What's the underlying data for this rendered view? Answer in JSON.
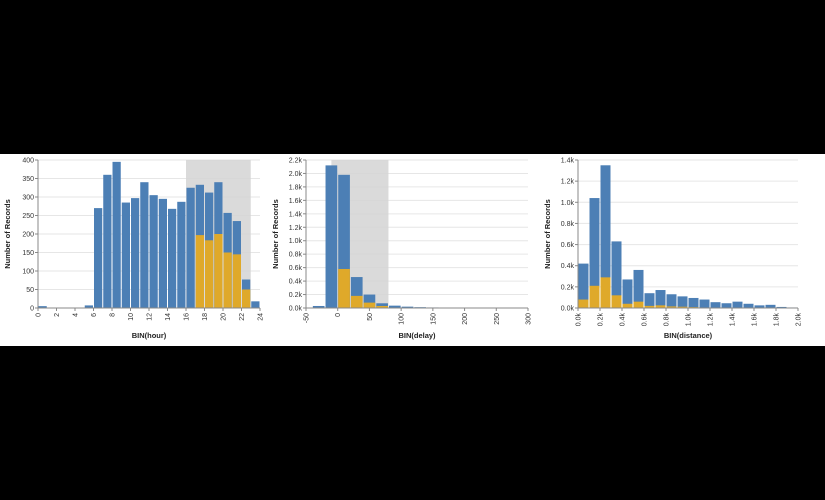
{
  "colors": {
    "background": "#000000",
    "panel": "#ffffff",
    "all_records": "#4c7fb5",
    "selected_records": "#dfa92a",
    "brush": "#d3d3d3",
    "grid": "#e6e6e6"
  },
  "chart_data": [
    {
      "type": "bar",
      "xlabel": "BIN(hour)",
      "ylabel": "Number of Records",
      "xlim": [
        0,
        24
      ],
      "ylim": [
        0,
        400
      ],
      "xticks": [
        0,
        2,
        4,
        6,
        8,
        10,
        12,
        14,
        16,
        18,
        20,
        22,
        24
      ],
      "xtick_labels": [
        "0",
        "2",
        "4",
        "6",
        "8",
        "10",
        "12",
        "14",
        "16",
        "18",
        "20",
        "22",
        "24"
      ],
      "yticks": [
        0,
        50,
        100,
        150,
        200,
        250,
        300,
        350,
        400
      ],
      "ytick_labels": [
        "0",
        "50",
        "100",
        "150",
        "200",
        "250",
        "300",
        "350",
        "400"
      ],
      "bin_width": 1,
      "bins_start": [
        0,
        1,
        2,
        3,
        4,
        5,
        6,
        7,
        8,
        9,
        10,
        11,
        12,
        13,
        14,
        15,
        16,
        17,
        18,
        19,
        20,
        21,
        22,
        23
      ],
      "brush": [
        16,
        23
      ],
      "series": [
        {
          "values": [
            5,
            0,
            0,
            0,
            0,
            7,
            270,
            360,
            395,
            285,
            297,
            340,
            305,
            295,
            268,
            287,
            325,
            333,
            312,
            340,
            257,
            235,
            77,
            18
          ]
        },
        {
          "values": [
            0,
            0,
            0,
            0,
            0,
            0,
            0,
            0,
            0,
            0,
            0,
            0,
            0,
            0,
            0,
            0,
            0,
            197,
            183,
            200,
            150,
            145,
            50,
            0
          ]
        }
      ]
    },
    {
      "type": "bar",
      "xlabel": "BIN(delay)",
      "ylabel": "Number of Records",
      "xlim": [
        -50,
        300
      ],
      "ylim": [
        0,
        2200
      ],
      "xticks": [
        -50,
        0,
        50,
        100,
        150,
        200,
        250,
        300
      ],
      "xtick_labels": [
        "-50",
        "0",
        "50",
        "100",
        "150",
        "200",
        "250",
        "300"
      ],
      "yticks": [
        0,
        200,
        400,
        600,
        800,
        1000,
        1200,
        1400,
        1600,
        1800,
        2000,
        2200
      ],
      "ytick_labels": [
        "0.0k",
        "0.2k",
        "0.4k",
        "0.6k",
        "0.8k",
        "1.0k",
        "1.2k",
        "1.4k",
        "1.6k",
        "1.8k",
        "2.0k",
        "2.2k"
      ],
      "bin_width": 20,
      "bins_start": [
        -40,
        -20,
        0,
        20,
        40,
        60,
        80,
        100,
        120,
        140,
        160,
        180,
        200,
        220,
        240,
        260,
        280
      ],
      "brush": [
        -10,
        80
      ],
      "series": [
        {
          "values": [
            30,
            2120,
            1980,
            460,
            200,
            70,
            35,
            20,
            12,
            8,
            5,
            4,
            3,
            3,
            2,
            2,
            1
          ]
        },
        {
          "values": [
            0,
            0,
            580,
            180,
            80,
            30,
            0,
            0,
            0,
            0,
            0,
            0,
            0,
            0,
            0,
            0,
            0
          ]
        }
      ]
    },
    {
      "type": "bar",
      "xlabel": "BIN(distance)",
      "ylabel": "Number of Records",
      "xlim": [
        0,
        2000
      ],
      "ylim": [
        0,
        1400
      ],
      "xticks": [
        0,
        200,
        400,
        600,
        800,
        1000,
        1200,
        1400,
        1600,
        1800,
        2000
      ],
      "xtick_labels": [
        "0.0k",
        "0.2k",
        "0.4k",
        "0.6k",
        "0.8k",
        "1.0k",
        "1.2k",
        "1.4k",
        "1.6k",
        "1.8k",
        "2.0k"
      ],
      "yticks": [
        0,
        200,
        400,
        600,
        800,
        1000,
        1200,
        1400
      ],
      "ytick_labels": [
        "0.0k",
        "0.2k",
        "0.4k",
        "0.6k",
        "0.8k",
        "1.0k",
        "1.2k",
        "1.4k"
      ],
      "bin_width": 100,
      "bins_start": [
        0,
        100,
        200,
        300,
        400,
        500,
        600,
        700,
        800,
        900,
        1000,
        1100,
        1200,
        1300,
        1400,
        1500,
        1600,
        1700,
        1800,
        1900
      ],
      "brush": null,
      "series": [
        {
          "values": [
            420,
            1040,
            1350,
            630,
            270,
            360,
            140,
            170,
            130,
            110,
            95,
            80,
            55,
            45,
            60,
            40,
            25,
            30,
            10,
            5
          ]
        },
        {
          "values": [
            80,
            210,
            290,
            120,
            40,
            60,
            20,
            25,
            15,
            12,
            8,
            5,
            3,
            2,
            3,
            2,
            1,
            1,
            0,
            0
          ]
        }
      ]
    }
  ]
}
